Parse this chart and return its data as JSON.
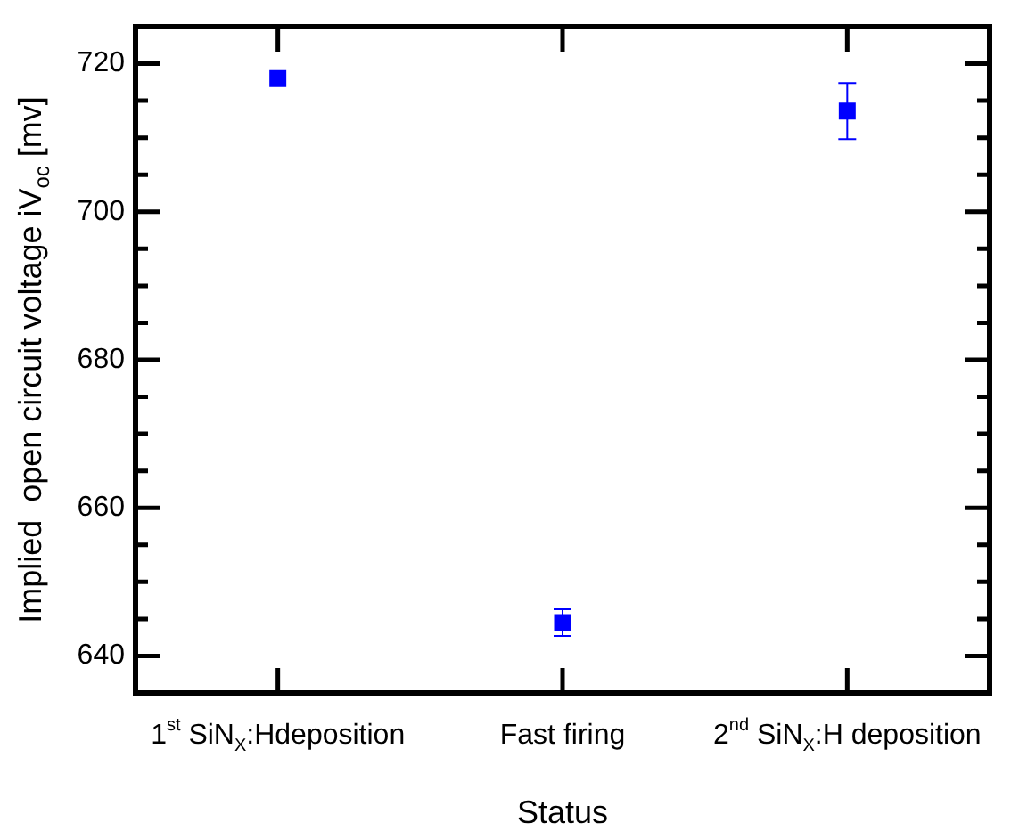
{
  "chart_data": {
    "type": "scatter",
    "xlabel": "Status",
    "ylabel": "Implied  open circuit voltage iV$_{oc}$ [mv]",
    "categories": [
      "1$^{st}$ SiN$_{X}$:Hdeposition",
      "Fast firing",
      "2$^{nd}$ SiN$_{X}$:H deposition"
    ],
    "series": [
      {
        "color": "#0000ff",
        "values": [
          718,
          644.5,
          713.6
        ],
        "errors": [
          null,
          1.8,
          3.8
        ]
      }
    ],
    "marker": "square",
    "grid": false,
    "legend": false,
    "ylim": [
      635,
      725
    ],
    "yticks": [
      640,
      {
        "value": 645,
        "label": null
      },
      {
        "value": 650,
        "label": null
      },
      {
        "value": 655,
        "label": null
      },
      660,
      {
        "value": 665,
        "label": null
      },
      {
        "value": 670,
        "label": null
      },
      {
        "value": 675,
        "label": null
      },
      680,
      {
        "value": 685,
        "label": null
      },
      {
        "value": 690,
        "label": null
      },
      {
        "value": 695,
        "label": null
      },
      700,
      {
        "value": 705,
        "label": null
      },
      {
        "value": 710,
        "label": null
      },
      {
        "value": 715,
        "label": null
      },
      720
    ]
  }
}
